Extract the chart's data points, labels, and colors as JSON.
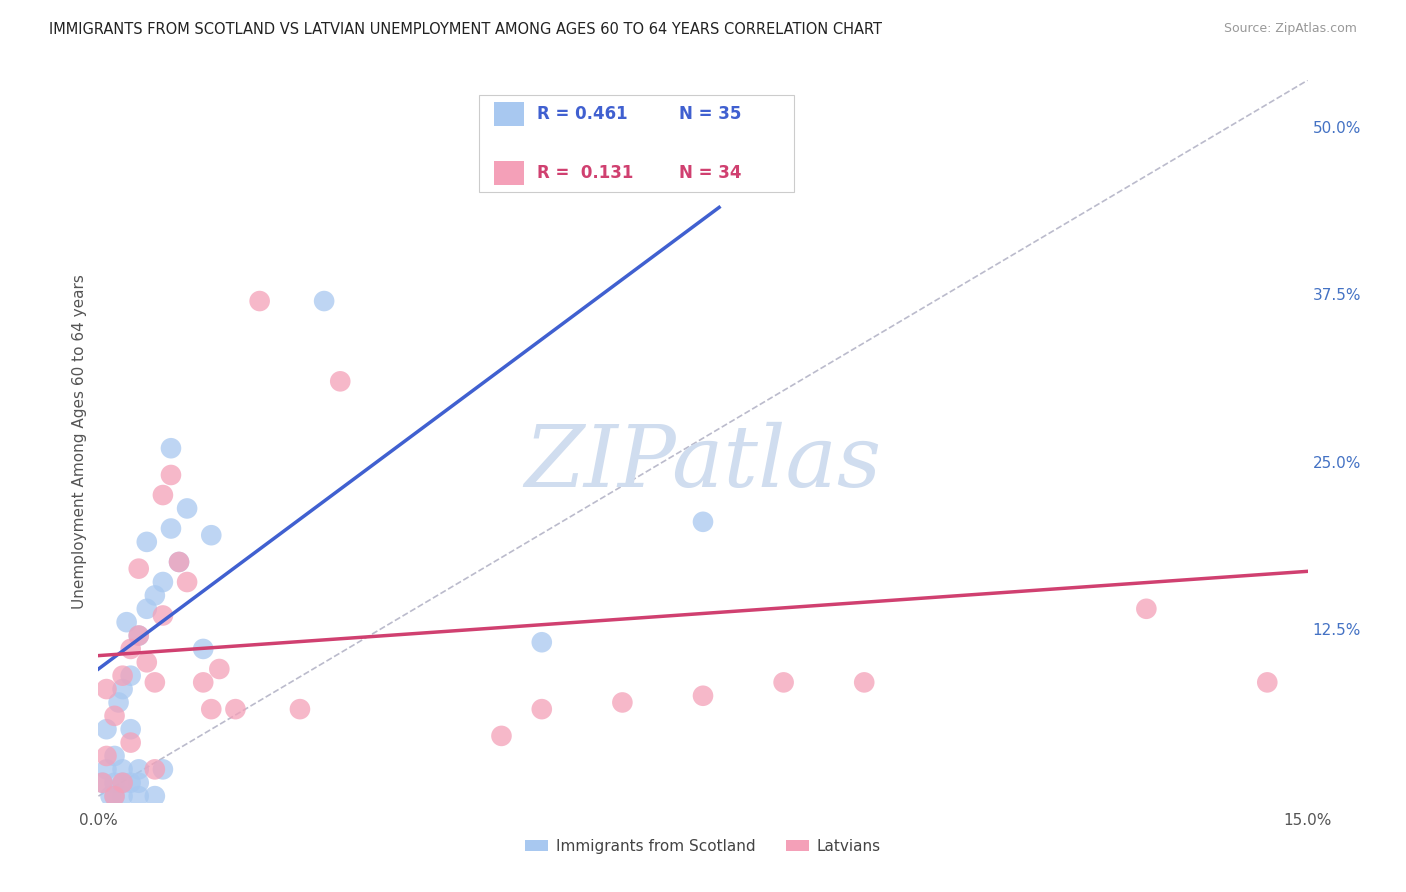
{
  "title": "IMMIGRANTS FROM SCOTLAND VS LATVIAN UNEMPLOYMENT AMONG AGES 60 TO 64 YEARS CORRELATION CHART",
  "source": "Source: ZipAtlas.com",
  "ylabel": "Unemployment Among Ages 60 to 64 years",
  "xlim": [
    0,
    0.15
  ],
  "ylim": [
    -0.005,
    0.535
  ],
  "xticks": [
    0.0,
    0.03,
    0.06,
    0.09,
    0.12,
    0.15
  ],
  "xtick_labels": [
    "0.0%",
    "",
    "",
    "",
    "",
    "15.0%"
  ],
  "ytick_positions": [
    0.125,
    0.25,
    0.375,
    0.5
  ],
  "ytick_labels": [
    "12.5%",
    "25.0%",
    "37.5%",
    "50.0%"
  ],
  "blue_color": "#A8C8F0",
  "pink_color": "#F4A0B8",
  "blue_line_color": "#4060D0",
  "pink_line_color": "#D04070",
  "diag_color": "#BBBBCC",
  "watermark": "ZIPatlas",
  "watermark_color": "#D0DDEF",
  "legend_R_blue": "R = 0.461",
  "legend_N_blue": "N = 35",
  "legend_R_pink": "R =  0.131",
  "legend_N_pink": "N = 34",
  "blue_scatter_x": [
    0.0005,
    0.001,
    0.001,
    0.0015,
    0.002,
    0.002,
    0.002,
    0.0025,
    0.003,
    0.003,
    0.003,
    0.003,
    0.0035,
    0.004,
    0.004,
    0.004,
    0.005,
    0.005,
    0.005,
    0.005,
    0.006,
    0.006,
    0.007,
    0.007,
    0.008,
    0.008,
    0.009,
    0.009,
    0.01,
    0.011,
    0.013,
    0.014,
    0.028,
    0.055,
    0.075
  ],
  "blue_scatter_y": [
    0.01,
    0.02,
    0.05,
    0.0,
    0.0,
    0.01,
    0.03,
    0.07,
    0.0,
    0.01,
    0.02,
    0.08,
    0.13,
    0.01,
    0.05,
    0.09,
    0.0,
    0.01,
    0.02,
    0.12,
    0.14,
    0.19,
    0.0,
    0.15,
    0.02,
    0.16,
    0.2,
    0.26,
    0.175,
    0.215,
    0.11,
    0.195,
    0.37,
    0.115,
    0.205
  ],
  "pink_scatter_x": [
    0.0005,
    0.001,
    0.001,
    0.002,
    0.002,
    0.003,
    0.003,
    0.004,
    0.004,
    0.005,
    0.005,
    0.006,
    0.007,
    0.007,
    0.008,
    0.008,
    0.009,
    0.01,
    0.011,
    0.013,
    0.014,
    0.015,
    0.017,
    0.02,
    0.025,
    0.03,
    0.05,
    0.055,
    0.065,
    0.075,
    0.085,
    0.095,
    0.13,
    0.145
  ],
  "pink_scatter_y": [
    0.01,
    0.03,
    0.08,
    0.0,
    0.06,
    0.01,
    0.09,
    0.04,
    0.11,
    0.12,
    0.17,
    0.1,
    0.02,
    0.085,
    0.135,
    0.225,
    0.24,
    0.175,
    0.16,
    0.085,
    0.065,
    0.095,
    0.065,
    0.37,
    0.065,
    0.31,
    0.045,
    0.065,
    0.07,
    0.075,
    0.085,
    0.085,
    0.14,
    0.085
  ],
  "blue_line_x0": 0.0,
  "blue_line_y0": 0.095,
  "blue_line_x1": 0.077,
  "blue_line_y1": 0.44,
  "pink_line_x0": 0.0,
  "pink_line_y0": 0.105,
  "pink_line_x1": 0.15,
  "pink_line_y1": 0.168,
  "diag_line_x0": 0.0,
  "diag_line_y0": 0.0,
  "diag_line_x1": 0.15,
  "diag_line_y1": 0.535,
  "background_color": "#FFFFFF",
  "grid_color": "#DDDDDD"
}
